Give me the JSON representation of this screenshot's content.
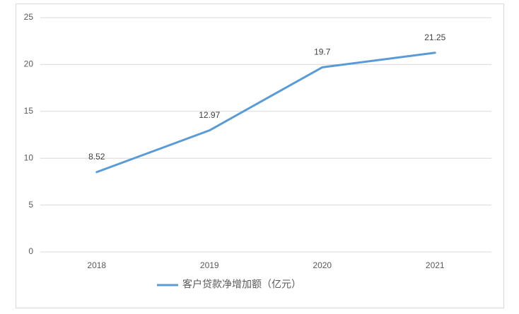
{
  "chart_data": {
    "type": "line",
    "categories": [
      "2018",
      "2019",
      "2020",
      "2021"
    ],
    "series": [
      {
        "name": "客户贷款净增加额（亿元）",
        "color": "#5b9bd5",
        "values": [
          8.52,
          12.97,
          19.7,
          21.25
        ]
      }
    ],
    "ylim": [
      0,
      25
    ],
    "yticks": [
      0,
      5,
      10,
      15,
      20,
      25
    ],
    "grid": true,
    "legend": "bottom",
    "data_labels": true
  }
}
